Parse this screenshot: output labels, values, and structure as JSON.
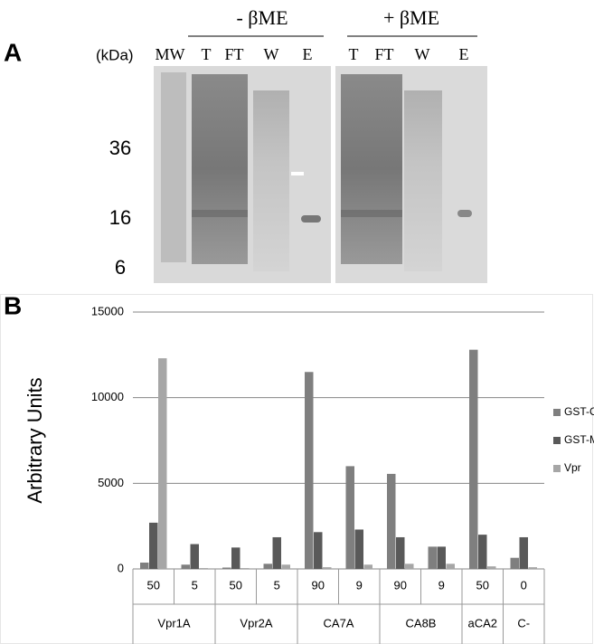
{
  "panel_a": {
    "letter": "A",
    "unit": "(kDa)",
    "conditions": [
      "- βME",
      "+ βME"
    ],
    "lanes": [
      "MW",
      "T",
      "FT",
      "W",
      "E",
      "T",
      "FT",
      "W",
      "E"
    ],
    "markers": [
      "36",
      "16",
      "6"
    ]
  },
  "chart_data": {
    "type": "bar",
    "panel": "B",
    "y_label": "Arbitrary Units",
    "categories": [
      "50",
      "5",
      "50",
      "5",
      "90",
      "9",
      "90",
      "9",
      "50",
      "0"
    ],
    "category_groups": [
      "Vpr1A",
      "Vpr1A",
      "Vpr2A",
      "Vpr2A",
      "CA7A",
      "CA7A",
      "CA8B",
      "CA8B",
      "aCA2",
      "C-"
    ],
    "series": [
      {
        "name": "GST-CA",
        "color": "#7f7f7f",
        "values": [
          370,
          250,
          80,
          300,
          11500,
          6000,
          5550,
          1300,
          12800,
          650
        ]
      },
      {
        "name": "GST-MA",
        "color": "#595959",
        "values": [
          2700,
          1450,
          1250,
          1850,
          2150,
          2300,
          1850,
          1300,
          2000,
          1850
        ]
      },
      {
        "name": "Vpr",
        "color": "#a6a6a6",
        "values": [
          12300,
          50,
          50,
          250,
          100,
          250,
          300,
          300,
          150,
          100
        ]
      }
    ],
    "ylim": [
      0,
      15000
    ],
    "yticks": [
      0,
      5000,
      10000,
      15000
    ],
    "grid": true,
    "legend": "right"
  }
}
